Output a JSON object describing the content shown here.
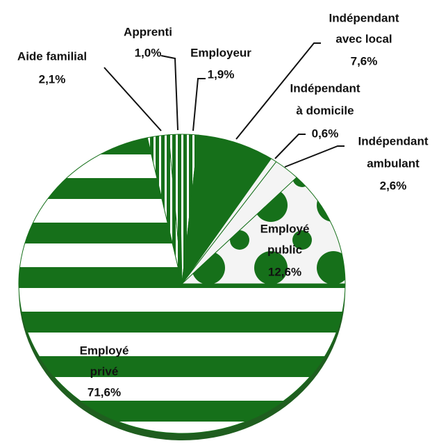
{
  "chart_data": {
    "type": "pie",
    "categories": [
      [
        "Employé",
        "privé"
      ],
      [
        "Aide familial"
      ],
      [
        "Apprenti"
      ],
      [
        "Employeur"
      ],
      [
        "Indépendant",
        "avec local"
      ],
      [
        "Indépendant",
        "à domicile"
      ],
      [
        "Indépendant",
        "ambulant"
      ],
      [
        "Employé",
        "public"
      ]
    ],
    "values": [
      71.6,
      2.1,
      1.0,
      1.9,
      7.6,
      0.6,
      2.6,
      12.6
    ],
    "value_labels": [
      "71,6%",
      "2,1%",
      "1,0%",
      "1,9%",
      "7,6%",
      "0,6%",
      "2,6%",
      "12,6%"
    ],
    "color": "#16701a"
  }
}
